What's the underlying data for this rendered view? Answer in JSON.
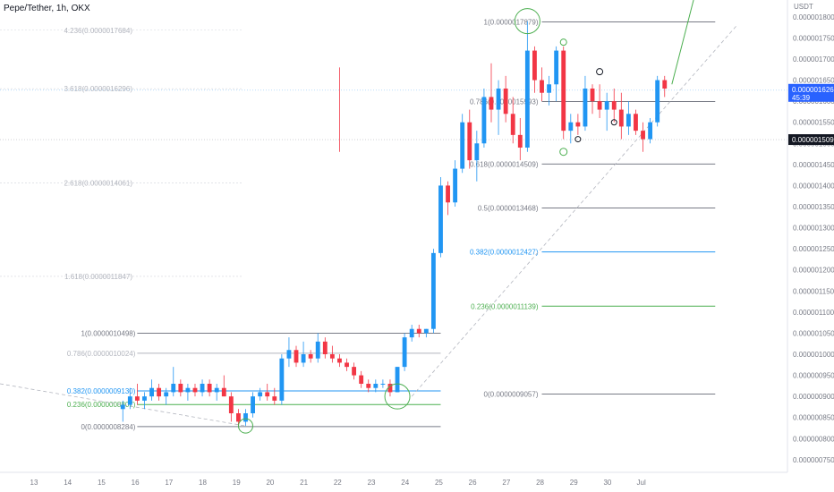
{
  "header": {
    "symbol": "Pepe/Tether, 1h, OKX"
  },
  "chart_data": {
    "type": "candlestick",
    "title": "Pepe/Tether, 1h, OKX",
    "currency": "USDT",
    "y_ticks": [
      "0.0000018000",
      "0.0000017500",
      "0.0000017000",
      "0.0000016500",
      "0.0000016000",
      "0.0000015500",
      "0.0000015000",
      "0.0000014500",
      "0.0000014000",
      "0.0000013500",
      "0.0000013000",
      "0.0000012500",
      "0.0000012000",
      "0.0000011500",
      "0.0000011000",
      "0.0000010500",
      "0.0000010000",
      "0.0000009500",
      "0.0000009000",
      "0.0000008500",
      "0.0000008000",
      "0.0000007500"
    ],
    "ylim": [
      7.2e-07,
      1.84e-06
    ],
    "x_ticks": [
      "13",
      "14",
      "15",
      "16",
      "17",
      "18",
      "19",
      "20",
      "21",
      "22",
      "23",
      "24",
      "25",
      "26",
      "27",
      "28",
      "29",
      "30",
      "Jul"
    ],
    "price_badge": {
      "value": "0.0000016262",
      "countdown": "45:39",
      "color": "#2962ff"
    },
    "secondary_badge": {
      "value": "0.0000015090",
      "color": "#131722"
    },
    "fib_right": [
      {
        "label": "1(0.0000017879)",
        "color": "#787b86"
      },
      {
        "label": "0.786(0.0000015993)",
        "color": "#787b86"
      },
      {
        "label": "0.618(0.0000014509)",
        "color": "#787b86"
      },
      {
        "label": "0.5(0.0000013468)",
        "color": "#787b86"
      },
      {
        "label": "0.382(0.0000012427)",
        "color": "#2196f3"
      },
      {
        "label": "0.236(0.0000011139)",
        "color": "#4caf50"
      },
      {
        "label": "0(0.0000009057)",
        "color": "#787b86"
      }
    ],
    "fib_left": [
      {
        "label": "1(0.0000010498)",
        "color": "#787b86"
      },
      {
        "label": "0.786(0.0000010024)",
        "color": "#b2b5be"
      },
      {
        "label": "0.382(0.0000009130)",
        "color": "#2196f3"
      },
      {
        "label": "0.236(0.0000008807)",
        "color": "#4caf50"
      },
      {
        "label": "0(0.0000008284)",
        "color": "#787b86"
      }
    ],
    "fib_ext_faded": [
      {
        "label": "4.236(0.0000017684)"
      },
      {
        "label": "3.618(0.0000016296)"
      },
      {
        "label": "2.618(0.0000014061)"
      },
      {
        "label": "1.618(0.0000011847)"
      }
    ],
    "ohlc": [
      {
        "o": 8.7e-07,
        "h": 8.9e-07,
        "l": 8.4e-07,
        "c": 8.8e-07
      },
      {
        "o": 8.8e-07,
        "h": 9.2e-07,
        "l": 8.7e-07,
        "c": 9e-07
      },
      {
        "o": 9e-07,
        "h": 9.3e-07,
        "l": 8.8e-07,
        "c": 8.9e-07
      },
      {
        "o": 8.9e-07,
        "h": 9.1e-07,
        "l": 8.7e-07,
        "c": 9e-07
      },
      {
        "o": 9e-07,
        "h": 9.4e-07,
        "l": 8.9e-07,
        "c": 9.2e-07
      },
      {
        "o": 9.2e-07,
        "h": 9.3e-07,
        "l": 8.9e-07,
        "c": 9e-07
      },
      {
        "o": 9e-07,
        "h": 9.2e-07,
        "l": 8.8e-07,
        "c": 9.1e-07
      },
      {
        "o": 9.1e-07,
        "h": 9.7e-07,
        "l": 9e-07,
        "c": 9.3e-07
      },
      {
        "o": 9.3e-07,
        "h": 9.4e-07,
        "l": 9e-07,
        "c": 9.1e-07
      },
      {
        "o": 9.1e-07,
        "h": 9.3e-07,
        "l": 8.9e-07,
        "c": 9.2e-07
      },
      {
        "o": 9.2e-07,
        "h": 9.3e-07,
        "l": 9e-07,
        "c": 9.1e-07
      },
      {
        "o": 9.1e-07,
        "h": 9.4e-07,
        "l": 9e-07,
        "c": 9.3e-07
      },
      {
        "o": 9.3e-07,
        "h": 9.4e-07,
        "l": 9e-07,
        "c": 9.1e-07
      },
      {
        "o": 9.1e-07,
        "h": 9.3e-07,
        "l": 8.9e-07,
        "c": 9.2e-07
      },
      {
        "o": 9.2e-07,
        "h": 9.5e-07,
        "l": 9e-07,
        "c": 9e-07
      },
      {
        "o": 9e-07,
        "h": 9.1e-07,
        "l": 8.4e-07,
        "c": 8.6e-07
      },
      {
        "o": 8.6e-07,
        "h": 8.7e-07,
        "l": 8.3e-07,
        "c": 8.4e-07
      },
      {
        "o": 8.4e-07,
        "h": 8.7e-07,
        "l": 8.3e-07,
        "c": 8.6e-07
      },
      {
        "o": 8.6e-07,
        "h": 9.1e-07,
        "l": 8.5e-07,
        "c": 9e-07
      },
      {
        "o": 9e-07,
        "h": 9.2e-07,
        "l": 8.9e-07,
        "c": 9.1e-07
      },
      {
        "o": 9.1e-07,
        "h": 9.3e-07,
        "l": 8.9e-07,
        "c": 9e-07
      },
      {
        "o": 9e-07,
        "h": 9.2e-07,
        "l": 8.8e-07,
        "c": 8.9e-07
      },
      {
        "o": 8.9e-07,
        "h": 1e-06,
        "l": 8.8e-07,
        "c": 9.9e-07
      },
      {
        "o": 9.9e-07,
        "h": 1.04e-06,
        "l": 9.7e-07,
        "c": 1.01e-06
      },
      {
        "o": 1.01e-06,
        "h": 1.02e-06,
        "l": 9.7e-07,
        "c": 9.8e-07
      },
      {
        "o": 9.8e-07,
        "h": 1.03e-06,
        "l": 9.7e-07,
        "c": 1e-06
      },
      {
        "o": 1e-06,
        "h": 1.01e-06,
        "l": 9.8e-07,
        "c": 9.9e-07
      },
      {
        "o": 9.9e-07,
        "h": 1.05e-06,
        "l": 9.8e-07,
        "c": 1.03e-06
      },
      {
        "o": 1.03e-06,
        "h": 1.04e-06,
        "l": 9.9e-07,
        "c": 1e-06
      },
      {
        "o": 1e-06,
        "h": 1.02e-06,
        "l": 9.8e-07,
        "c": 9.9e-07
      },
      {
        "o": 9.9e-07,
        "h": 1e-06,
        "l": 9.7e-07,
        "c": 9.8e-07
      },
      {
        "o": 9.8e-07,
        "h": 9.9e-07,
        "l": 9.6e-07,
        "c": 9.7e-07
      },
      {
        "o": 9.7e-07,
        "h": 9.8e-07,
        "l": 9.4e-07,
        "c": 9.5e-07
      },
      {
        "o": 9.5e-07,
        "h": 9.6e-07,
        "l": 9.2e-07,
        "c": 9.3e-07
      },
      {
        "o": 9.3e-07,
        "h": 9.4e-07,
        "l": 9.1e-07,
        "c": 9.2e-07
      },
      {
        "o": 9.2e-07,
        "h": 9.4e-07,
        "l": 9.1e-07,
        "c": 9.3e-07
      },
      {
        "o": 9.3e-07,
        "h": 9.4e-07,
        "l": 9.2e-07,
        "c": 9.3e-07
      },
      {
        "o": 9.3e-07,
        "h": 9.4e-07,
        "l": 9e-07,
        "c": 9.1e-07
      },
      {
        "o": 9.1e-07,
        "h": 9.7e-07,
        "l": 9.1e-07,
        "c": 9.7e-07
      },
      {
        "o": 9.7e-07,
        "h": 1.05e-06,
        "l": 9.6e-07,
        "c": 1.04e-06
      },
      {
        "o": 1.04e-06,
        "h": 1.07e-06,
        "l": 1.03e-06,
        "c": 1.06e-06
      },
      {
        "o": 1.06e-06,
        "h": 1.07e-06,
        "l": 1.04e-06,
        "c": 1.05e-06
      },
      {
        "o": 1.05e-06,
        "h": 1.06e-06,
        "l": 1.04e-06,
        "c": 1.06e-06
      },
      {
        "o": 1.06e-06,
        "h": 1.25e-06,
        "l": 1.05e-06,
        "c": 1.24e-06
      },
      {
        "o": 1.24e-06,
        "h": 1.42e-06,
        "l": 1.23e-06,
        "c": 1.4e-06
      },
      {
        "o": 1.4e-06,
        "h": 1.41e-06,
        "l": 1.33e-06,
        "c": 1.36e-06
      },
      {
        "o": 1.36e-06,
        "h": 1.46e-06,
        "l": 1.35e-06,
        "c": 1.44e-06
      },
      {
        "o": 1.44e-06,
        "h": 1.57e-06,
        "l": 1.43e-06,
        "c": 1.55e-06
      },
      {
        "o": 1.55e-06,
        "h": 1.58e-06,
        "l": 1.44e-06,
        "c": 1.46e-06
      },
      {
        "o": 1.46e-06,
        "h": 1.53e-06,
        "l": 1.41e-06,
        "c": 1.5e-06
      },
      {
        "o": 1.5e-06,
        "h": 1.63e-06,
        "l": 1.49e-06,
        "c": 1.61e-06
      },
      {
        "o": 1.61e-06,
        "h": 1.69e-06,
        "l": 1.55e-06,
        "c": 1.58e-06
      },
      {
        "o": 1.58e-06,
        "h": 1.65e-06,
        "l": 1.52e-06,
        "c": 1.63e-06
      },
      {
        "o": 1.63e-06,
        "h": 1.66e-06,
        "l": 1.55e-06,
        "c": 1.57e-06
      },
      {
        "o": 1.57e-06,
        "h": 1.61e-06,
        "l": 1.5e-06,
        "c": 1.52e-06
      },
      {
        "o": 1.52e-06,
        "h": 1.56e-06,
        "l": 1.46e-06,
        "c": 1.49e-06
      },
      {
        "o": 1.49e-06,
        "h": 1.79e-06,
        "l": 1.48e-06,
        "c": 1.72e-06
      },
      {
        "o": 1.72e-06,
        "h": 1.73e-06,
        "l": 1.62e-06,
        "c": 1.65e-06
      },
      {
        "o": 1.65e-06,
        "h": 1.68e-06,
        "l": 1.6e-06,
        "c": 1.62e-06
      },
      {
        "o": 1.62e-06,
        "h": 1.66e-06,
        "l": 1.59e-06,
        "c": 1.64e-06
      },
      {
        "o": 1.64e-06,
        "h": 1.73e-06,
        "l": 1.6e-06,
        "c": 1.72e-06
      },
      {
        "o": 1.72e-06,
        "h": 1.73e-06,
        "l": 1.51e-06,
        "c": 1.53e-06
      },
      {
        "o": 1.53e-06,
        "h": 1.57e-06,
        "l": 1.5e-06,
        "c": 1.55e-06
      },
      {
        "o": 1.55e-06,
        "h": 1.57e-06,
        "l": 1.52e-06,
        "c": 1.54e-06
      },
      {
        "o": 1.54e-06,
        "h": 1.66e-06,
        "l": 1.53e-06,
        "c": 1.63e-06
      },
      {
        "o": 1.63e-06,
        "h": 1.64e-06,
        "l": 1.57e-06,
        "c": 1.6e-06
      },
      {
        "o": 1.6e-06,
        "h": 1.64e-06,
        "l": 1.56e-06,
        "c": 1.58e-06
      },
      {
        "o": 1.58e-06,
        "h": 1.62e-06,
        "l": 1.53e-06,
        "c": 1.6e-06
      },
      {
        "o": 1.6e-06,
        "h": 1.63e-06,
        "l": 1.55e-06,
        "c": 1.58e-06
      },
      {
        "o": 1.58e-06,
        "h": 1.62e-06,
        "l": 1.51e-06,
        "c": 1.54e-06
      },
      {
        "o": 1.54e-06,
        "h": 1.6e-06,
        "l": 1.52e-06,
        "c": 1.57e-06
      },
      {
        "o": 1.57e-06,
        "h": 1.58e-06,
        "l": 1.52e-06,
        "c": 1.53e-06
      },
      {
        "o": 1.53e-06,
        "h": 1.55e-06,
        "l": 1.48e-06,
        "c": 1.51e-06
      },
      {
        "o": 1.51e-06,
        "h": 1.56e-06,
        "l": 1.5e-06,
        "c": 1.55e-06
      },
      {
        "o": 1.55e-06,
        "h": 1.66e-06,
        "l": 1.54e-06,
        "c": 1.65e-06
      },
      {
        "o": 1.65e-06,
        "h": 1.66e-06,
        "l": 1.61e-06,
        "c": 1.63e-06
      }
    ],
    "x_index_range": [
      -17,
      92
    ]
  }
}
